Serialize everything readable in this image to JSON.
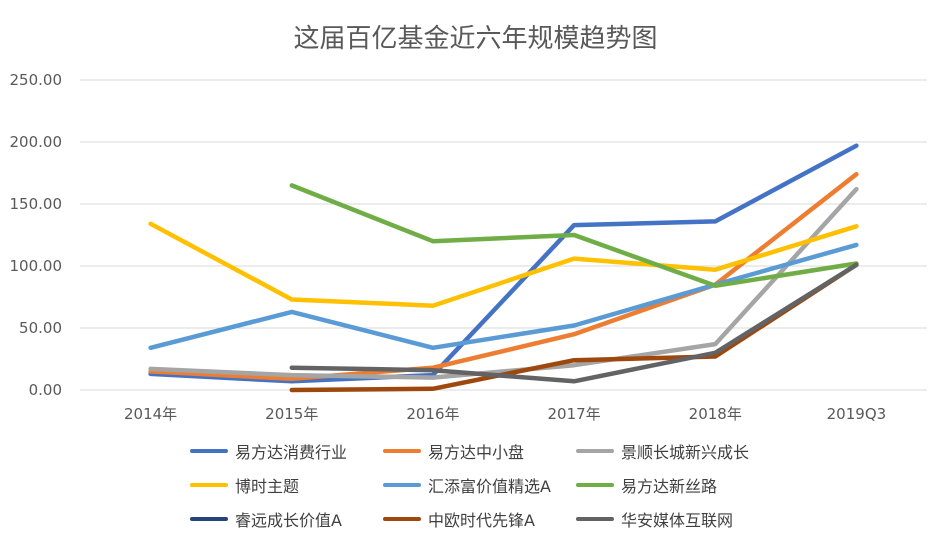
{
  "chart_data": {
    "type": "line",
    "title": "这届百亿基金近六年规模趋势图",
    "categories": [
      "2014年",
      "2015年",
      "2016年",
      "2017年",
      "2018年",
      "2019Q3"
    ],
    "ylim": [
      0,
      250
    ],
    "yticks": [
      "0.00",
      "50.00",
      "100.00",
      "150.00",
      "200.00",
      "250.00"
    ],
    "grid": true,
    "legend_position": "bottom",
    "series": [
      {
        "name": "易方达消费行业",
        "color": "#4472C4",
        "values": [
          13,
          7,
          12,
          133,
          136,
          197
        ]
      },
      {
        "name": "易方达中小盘",
        "color": "#ED7D31",
        "values": [
          15,
          9,
          18,
          45,
          85,
          174
        ]
      },
      {
        "name": "景顺长城新兴成长",
        "color": "#A5A5A5",
        "values": [
          17,
          12,
          10,
          20,
          37,
          162
        ]
      },
      {
        "name": "博时主题",
        "color": "#FFC000",
        "values": [
          134,
          73,
          68,
          106,
          97,
          132
        ]
      },
      {
        "name": "汇添富价值精选A",
        "color": "#5B9BD5",
        "values": [
          34,
          63,
          34,
          52,
          85,
          117
        ]
      },
      {
        "name": "易方达新丝路",
        "color": "#70AD47",
        "values": [
          null,
          165,
          120,
          125,
          84,
          102
        ]
      },
      {
        "name": "睿远成长价值A",
        "color": "#264478",
        "values": [
          null,
          null,
          null,
          null,
          null,
          null
        ]
      },
      {
        "name": "中欧时代先锋A",
        "color": "#9E480E",
        "values": [
          null,
          0,
          1,
          24,
          27,
          101
        ]
      },
      {
        "name": "华安媒体互联网",
        "color": "#636363",
        "values": [
          null,
          18,
          16,
          7,
          30,
          101
        ]
      }
    ]
  }
}
